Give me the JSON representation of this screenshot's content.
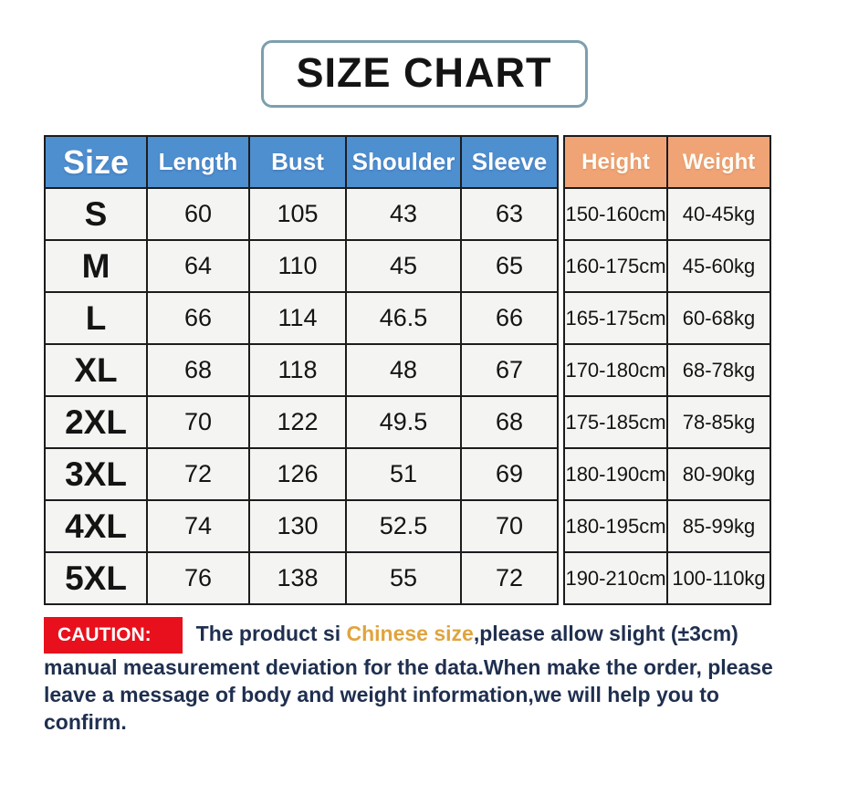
{
  "title": "SIZE CHART",
  "table": {
    "headers": [
      "Size",
      "Length",
      "Bust",
      "Shoulder",
      "Sleeve",
      "Height",
      "Weight"
    ],
    "rows": [
      {
        "size": "S",
        "length": "60",
        "bust": "105",
        "shoulder": "43",
        "sleeve": "63",
        "height": "150-160cm",
        "weight": "40-45kg"
      },
      {
        "size": "M",
        "length": "64",
        "bust": "110",
        "shoulder": "45",
        "sleeve": "65",
        "height": "160-175cm",
        "weight": "45-60kg"
      },
      {
        "size": "L",
        "length": "66",
        "bust": "114",
        "shoulder": "46.5",
        "sleeve": "66",
        "height": "165-175cm",
        "weight": "60-68kg"
      },
      {
        "size": "XL",
        "length": "68",
        "bust": "118",
        "shoulder": "48",
        "sleeve": "67",
        "height": "170-180cm",
        "weight": "68-78kg"
      },
      {
        "size": "2XL",
        "length": "70",
        "bust": "122",
        "shoulder": "49.5",
        "sleeve": "68",
        "height": "175-185cm",
        "weight": "78-85kg"
      },
      {
        "size": "3XL",
        "length": "72",
        "bust": "126",
        "shoulder": "51",
        "sleeve": "69",
        "height": "180-190cm",
        "weight": "80-90kg"
      },
      {
        "size": "4XL",
        "length": "74",
        "bust": "130",
        "shoulder": "52.5",
        "sleeve": "70",
        "height": "180-195cm",
        "weight": "85-99kg"
      },
      {
        "size": "5XL",
        "length": "76",
        "bust": "138",
        "shoulder": "55",
        "sleeve": "72",
        "height": "190-210cm",
        "weight": "100-110kg"
      }
    ]
  },
  "caution": {
    "label": "CAUTION:",
    "text_before": "The product si ",
    "highlight": "Chinese size",
    "text_after": ",please allow slight (±3cm) manual measurement deviation for the data.When make the order, please leave a message of body and weight information,we will help you to confirm."
  },
  "colors": {
    "header_blue": "#4e8fd0",
    "header_orange": "#f0a476",
    "caution_red": "#e8101c",
    "highlight_gold": "#e0a43e",
    "body_text_navy": "#1f2f4f",
    "cell_background": "#f4f4f2",
    "title_border": "#7d9fae"
  }
}
